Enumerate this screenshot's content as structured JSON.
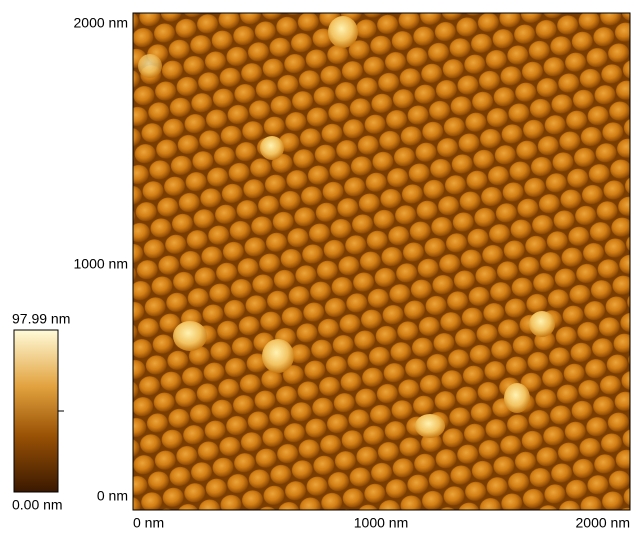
{
  "image": {
    "y_axis": {
      "labels": [
        "2000 nm",
        "1000 nm",
        "0 nm"
      ]
    },
    "x_axis": {
      "labels": [
        "0 nm",
        "1000 nm",
        "2000 nm"
      ]
    },
    "colorbar": {
      "max_label": "97.99 nm",
      "min_label": "0.00 nm"
    }
  }
}
